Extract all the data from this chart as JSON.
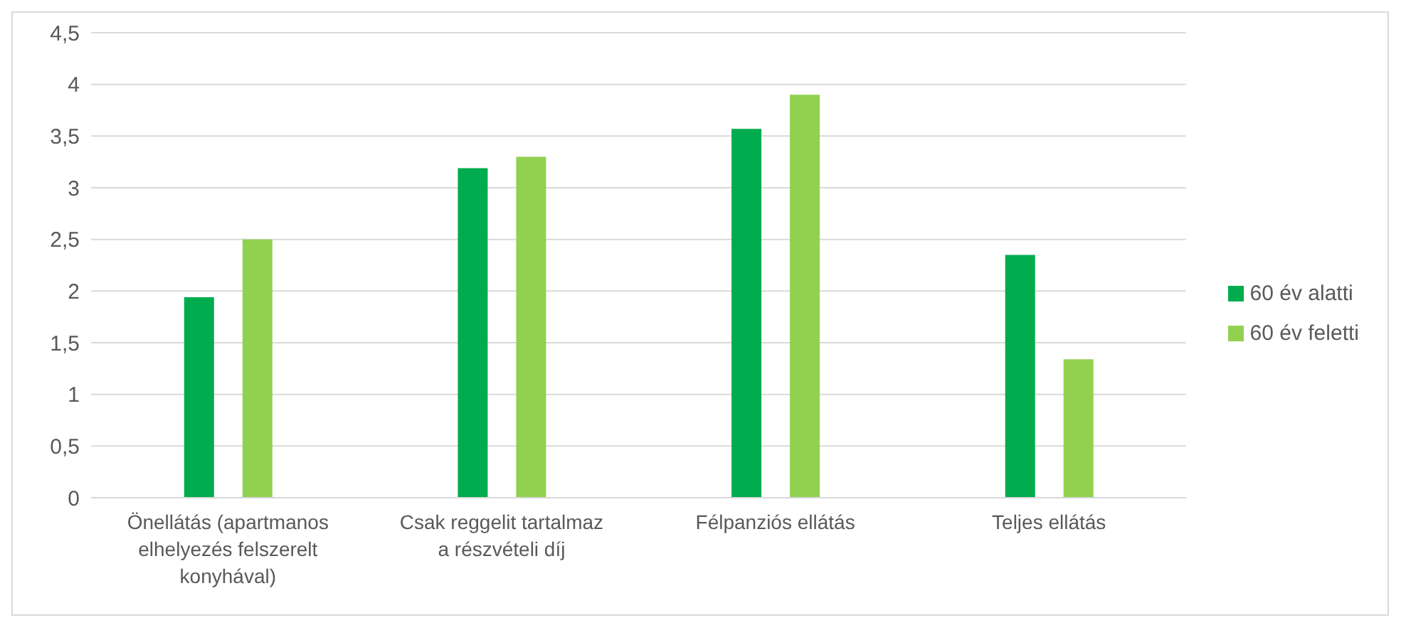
{
  "chart_data": {
    "type": "bar",
    "categories": [
      "Önellátás (apartmanos elhelyezés felszerelt konyhával)",
      "Csak reggelit tartalmaz a részvételi díj",
      "Félpanziós ellátás",
      "Teljes ellátás"
    ],
    "series": [
      {
        "name": "60 év alatti",
        "color": "#00ac4e",
        "values": [
          1.94,
          3.19,
          3.57,
          2.35
        ]
      },
      {
        "name": "60 év feletti",
        "color": "#92d050",
        "values": [
          2.5,
          3.3,
          3.9,
          1.34
        ]
      }
    ],
    "ylim": [
      0,
      4.5
    ],
    "yticks": [
      0,
      {
        "value": 0.5,
        "label": "0,5"
      },
      1,
      {
        "value": 1.5,
        "label": "1,5"
      },
      2,
      {
        "value": 2.5,
        "label": "2,5"
      },
      3,
      {
        "value": 3.5,
        "label": "3,5"
      },
      4,
      {
        "value": 4.5,
        "label": "4,5"
      }
    ],
    "grid": "y",
    "legend": "right"
  }
}
